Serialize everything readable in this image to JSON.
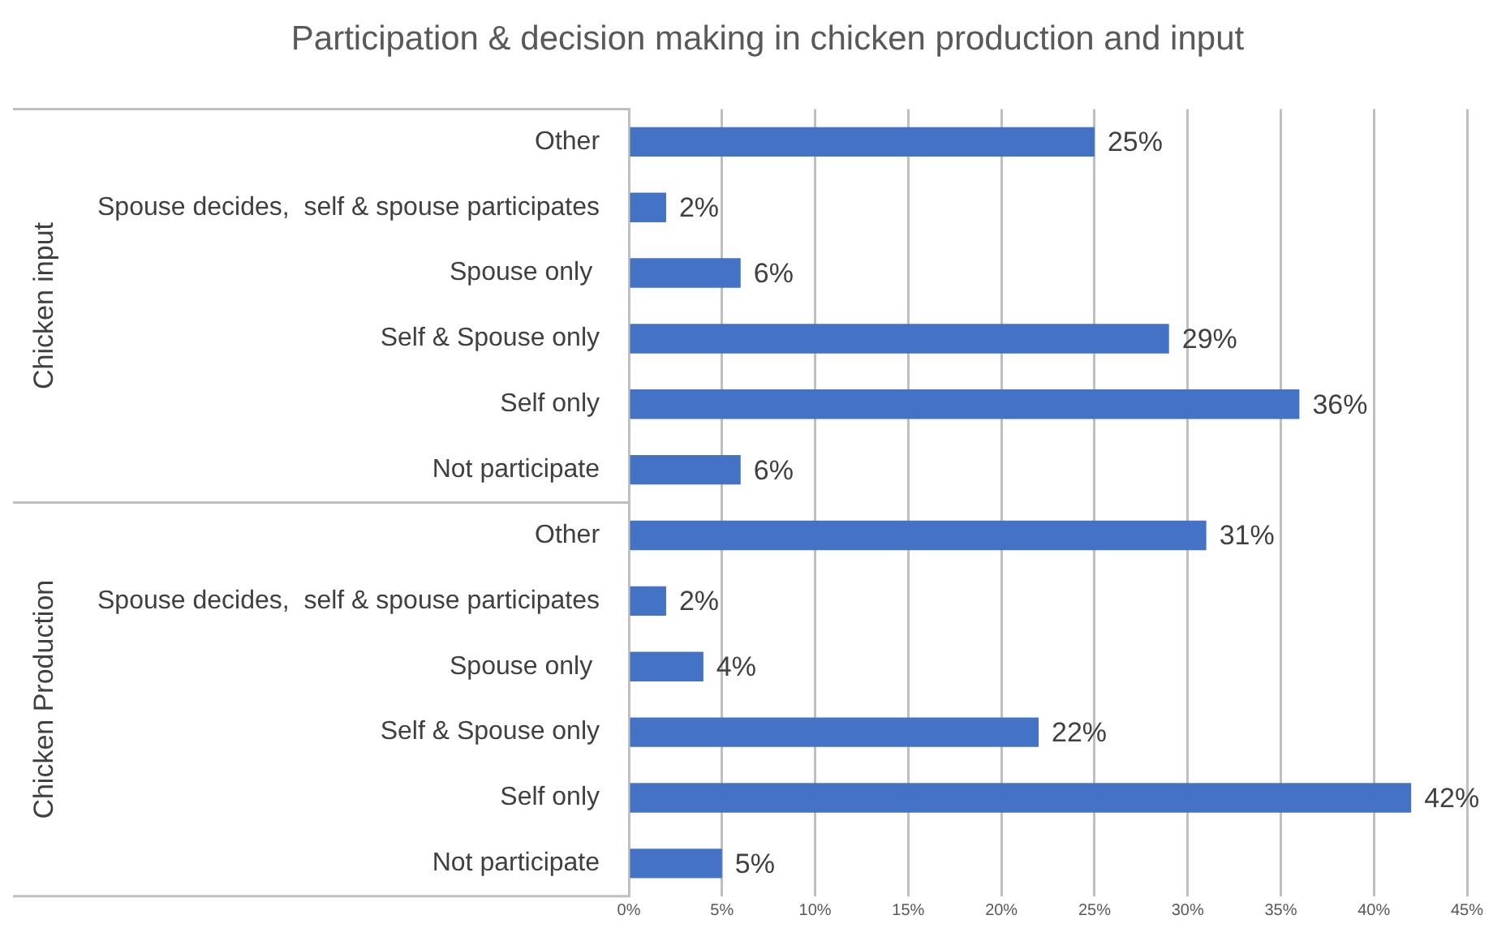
{
  "chart_data": {
    "type": "bar",
    "orientation": "horizontal",
    "title": "Participation & decision making in chicken production and input",
    "categories": [
      "Other",
      "Spouse decides,  self & spouse participates",
      "Spouse only ",
      "Self & Spouse only",
      "Self only",
      "Not participate",
      "Other",
      "Spouse decides,  self & spouse participates",
      "Spouse only ",
      "Self & Spouse only",
      "Self only",
      "Not participate"
    ],
    "values": [
      25,
      2,
      6,
      29,
      36,
      6,
      31,
      2,
      4,
      22,
      42,
      5
    ],
    "value_labels": [
      "25%",
      "2%",
      "6%",
      "29%",
      "36%",
      "6%",
      "31%",
      "2%",
      "4%",
      "22%",
      "42%",
      "5%"
    ],
    "color": "#4472c4",
    "xlim": [
      0,
      45
    ],
    "xticks": [
      {
        "value": 0,
        "label": "0%"
      },
      {
        "value": 5,
        "label": "5%"
      },
      {
        "value": 10,
        "label": "10%"
      },
      {
        "value": 15,
        "label": "15%"
      },
      {
        "value": 20,
        "label": "20%"
      },
      {
        "value": 25,
        "label": "25%"
      },
      {
        "value": 30,
        "label": "30%"
      },
      {
        "value": 35,
        "label": "35%"
      },
      {
        "value": 40,
        "label": "40%"
      },
      {
        "value": 45,
        "label": "45%"
      }
    ],
    "grid": "x",
    "annotations": [
      "Chicken input",
      "Chicken Production"
    ]
  }
}
